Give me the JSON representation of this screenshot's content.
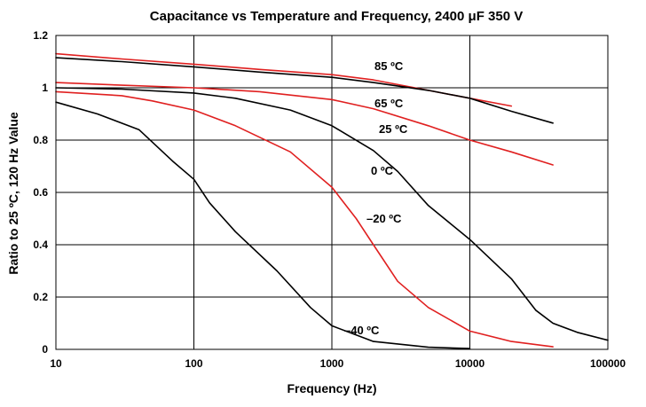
{
  "chart_data": {
    "type": "line",
    "title": "Capacitance vs Temperature and Frequency,  2400 μF  350  V",
    "xlabel": "Frequency (Hz)",
    "ylabel": "Ratio to 25 ºC, 120 Hz Value",
    "x_scale": "log",
    "xlim": [
      10,
      100000
    ],
    "ylim": [
      0,
      1.2
    ],
    "x_ticks": [
      10,
      100,
      1000,
      10000,
      100000
    ],
    "x_tick_labels": [
      "10",
      "100",
      "1000",
      "10000",
      "100000"
    ],
    "y_ticks": [
      0,
      0.2,
      0.4,
      0.6,
      0.8,
      1,
      1.2
    ],
    "y_tick_labels": [
      "0",
      "0.2",
      "0.4",
      "0.6",
      "0.8",
      "1",
      "1.2"
    ],
    "grid": true,
    "series": [
      {
        "name": "85 ºC",
        "color": "#e02020",
        "x": [
          10,
          30,
          100,
          300,
          1000,
          2000,
          5000,
          10000,
          20000
        ],
        "y": [
          1.13,
          1.11,
          1.09,
          1.07,
          1.05,
          1.03,
          0.99,
          0.96,
          0.93
        ]
      },
      {
        "name": "65 ºC",
        "color": "#000000",
        "x": [
          10,
          30,
          100,
          300,
          1000,
          2000,
          5000,
          10000,
          20000,
          40000
        ],
        "y": [
          1.115,
          1.1,
          1.08,
          1.06,
          1.04,
          1.02,
          0.99,
          0.96,
          0.91,
          0.865
        ]
      },
      {
        "name": "25 ºC",
        "color": "#e02020",
        "x": [
          10,
          30,
          100,
          300,
          1000,
          2000,
          5000,
          10000,
          20000,
          40000
        ],
        "y": [
          1.02,
          1.01,
          1.0,
          0.985,
          0.955,
          0.92,
          0.855,
          0.8,
          0.755,
          0.705
        ]
      },
      {
        "name": "0 ºC",
        "color": "#000000",
        "x": [
          10,
          30,
          100,
          200,
          500,
          1000,
          2000,
          3000,
          5000,
          10000,
          20000,
          30000,
          40000,
          60000,
          100000
        ],
        "y": [
          1.0,
          0.995,
          0.98,
          0.96,
          0.915,
          0.855,
          0.76,
          0.68,
          0.55,
          0.42,
          0.27,
          0.15,
          0.1,
          0.065,
          0.035
        ]
      },
      {
        "name": "–20 ºC",
        "color": "#e02020",
        "x": [
          10,
          30,
          50,
          100,
          200,
          500,
          1000,
          1500,
          2000,
          3000,
          5000,
          10000,
          20000,
          40000
        ],
        "y": [
          0.985,
          0.97,
          0.95,
          0.915,
          0.855,
          0.755,
          0.62,
          0.5,
          0.4,
          0.26,
          0.16,
          0.07,
          0.03,
          0.01
        ]
      },
      {
        "name": "–40 ºC",
        "color": "#000000",
        "x": [
          10,
          20,
          40,
          70,
          100,
          130,
          200,
          400,
          700,
          1000,
          2000,
          5000,
          10000
        ],
        "y": [
          0.945,
          0.9,
          0.84,
          0.72,
          0.65,
          0.56,
          0.45,
          0.3,
          0.16,
          0.09,
          0.03,
          0.008,
          0.003
        ]
      }
    ]
  }
}
